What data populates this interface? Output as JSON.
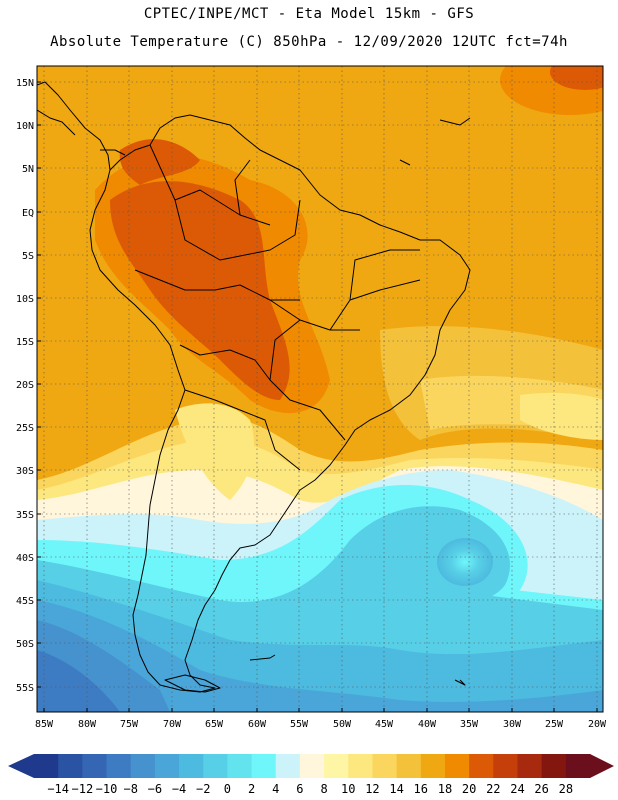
{
  "header": {
    "line1": "CPTEC/INPE/MCT -  Eta Model 15km - GFS",
    "line2": "Absolute Temperature (C) 850hPa - 12/09/2020 12UTC fct=74h"
  },
  "map": {
    "lat_labels": [
      "15N",
      "10N",
      "5N",
      "EQ",
      "5S",
      "10S",
      "15S",
      "20S",
      "25S",
      "30S",
      "35S",
      "40S",
      "45S",
      "50S",
      "55S"
    ],
    "lon_labels": [
      "85W",
      "80W",
      "75W",
      "70W",
      "65W",
      "60W",
      "55W",
      "50W",
      "45W",
      "40W",
      "35W",
      "30W",
      "25W",
      "20W"
    ]
  },
  "colorbar": {
    "labels": [
      "-14",
      "-12",
      "-10",
      "-8",
      "-6",
      "-4",
      "-2",
      "0",
      "2",
      "4",
      "6",
      "8",
      "10",
      "12",
      "14",
      "16",
      "18",
      "20",
      "22",
      "24",
      "26",
      "28"
    ],
    "colors": [
      "#1f3a8c",
      "#2a53a3",
      "#3566b3",
      "#3d7cc2",
      "#4592cf",
      "#4aa6d9",
      "#4dbadf",
      "#57cfe6",
      "#63e3ee",
      "#6ff6fb",
      "#ccf3fa",
      "#fff6dc",
      "#fef6a5",
      "#fde77f",
      "#fbd65e",
      "#f4c13b",
      "#f0a812",
      "#f08a00",
      "#dc5a05",
      "#c43f09",
      "#a82a0e",
      "#83170f",
      "#6b0f1c"
    ]
  }
}
